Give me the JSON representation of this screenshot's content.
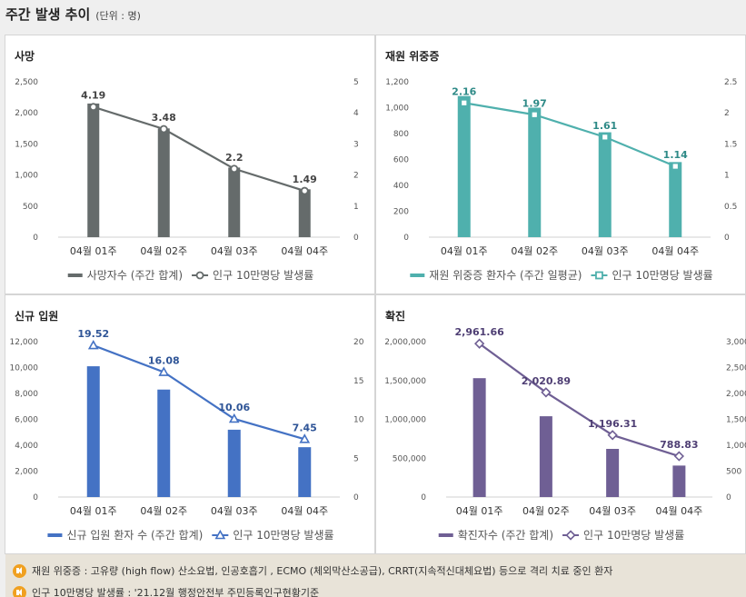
{
  "header": {
    "title": "주간 발생 추이",
    "unit": "(단위 : 명)"
  },
  "chart_data": [
    {
      "id": "death",
      "type": "bar+line",
      "title": "사망",
      "categories": [
        "04월 01주",
        "04월 02주",
        "04월 03주",
        "04월 04주"
      ],
      "bar": {
        "name": "사망자수 (주간 합계)",
        "values": [
          2150,
          1750,
          1120,
          770
        ],
        "color": "#656b6b"
      },
      "line": {
        "name": "인구 10만명당 발생률",
        "values": [
          4.19,
          3.48,
          2.2,
          1.49
        ],
        "labels": [
          "4.19",
          "3.48",
          "2.2",
          "1.49"
        ],
        "color": "#656b6b",
        "marker": "circle"
      },
      "left_axis": {
        "range": [
          0,
          2500
        ],
        "ticks": [
          "0",
          "500",
          "1,000",
          "1,500",
          "2,000",
          "2,500"
        ]
      },
      "right_axis": {
        "range": [
          0,
          5
        ],
        "ticks": [
          "0",
          "1",
          "2",
          "3",
          "4",
          "5"
        ]
      },
      "label_color": "#444444"
    },
    {
      "id": "severe",
      "type": "bar+line",
      "title": "재원 위중증",
      "categories": [
        "04월 01주",
        "04월 02주",
        "04월 03주",
        "04월 04주"
      ],
      "bar": {
        "name": "재원 위중증 환자수 (주간 일평균)",
        "values": [
          1090,
          1000,
          810,
          580
        ],
        "color": "#4fb0ad"
      },
      "line": {
        "name": "인구 10만명당 발생률",
        "values": [
          2.16,
          1.97,
          1.61,
          1.14
        ],
        "labels": [
          "2.16",
          "1.97",
          "1.61",
          "1.14"
        ],
        "color": "#4fb0ad",
        "marker": "square"
      },
      "left_axis": {
        "range": [
          0,
          1200
        ],
        "ticks": [
          "0",
          "200",
          "400",
          "600",
          "800",
          "1,000",
          "1,200"
        ]
      },
      "right_axis": {
        "range": [
          0,
          2.5
        ],
        "ticks": [
          "0",
          "0.5",
          "1",
          "1.5",
          "2",
          "2.5"
        ]
      },
      "label_color": "#2e8a87"
    },
    {
      "id": "admit",
      "type": "bar+line",
      "title": "신규 입원",
      "categories": [
        "04월 01주",
        "04월 02주",
        "04월 03주",
        "04월 04주"
      ],
      "bar": {
        "name": "신규 입원 환자 수 (주간 합계)",
        "values": [
          10100,
          8300,
          5200,
          3850
        ],
        "color": "#4472c4"
      },
      "line": {
        "name": "인구 10만명당 발생률",
        "values": [
          19.52,
          16.08,
          10.06,
          7.45
        ],
        "labels": [
          "19.52",
          "16.08",
          "10.06",
          "7.45"
        ],
        "color": "#4472c4",
        "marker": "triangle"
      },
      "left_axis": {
        "range": [
          0,
          12000
        ],
        "ticks": [
          "0",
          "2,000",
          "4,000",
          "6,000",
          "8,000",
          "10,000",
          "12,000"
        ]
      },
      "right_axis": {
        "range": [
          0,
          20
        ],
        "ticks": [
          "0",
          "5",
          "10",
          "15",
          "20"
        ]
      },
      "label_color": "#2f5597"
    },
    {
      "id": "confirmed",
      "type": "bar+line",
      "title": "확진",
      "categories": [
        "04월 01주",
        "04월 02주",
        "04월 03주",
        "04월 04주"
      ],
      "bar": {
        "name": "확진자수 (주간 합계)",
        "values": [
          1530000,
          1040000,
          620000,
          405000
        ],
        "color": "#6f5f94"
      },
      "line": {
        "name": "인구 10만명당 발생률",
        "values": [
          2961.66,
          2020.89,
          1196.31,
          788.83
        ],
        "labels": [
          "2,961.66",
          "2,020.89",
          "1,196.31",
          "788.83"
        ],
        "color": "#6f5f94",
        "marker": "diamond"
      },
      "left_axis": {
        "range": [
          0,
          2000000
        ],
        "ticks": [
          "0",
          "500,000",
          "1,000,000",
          "1,500,000",
          "2,000,000"
        ]
      },
      "right_axis": {
        "range": [
          0,
          3000
        ],
        "ticks": [
          "0",
          "500",
          "1,000",
          "1,500",
          "2,000",
          "2,500",
          "3,000"
        ]
      },
      "label_color": "#4f3f74"
    }
  ],
  "notes": [
    "재원 위중증 : 고유량 (high flow) 산소요법, 인공호흡기 , ECMO (체외막산소공급), CRRT(지속적신대체요법) 등으로 격리 치료 중인 환자",
    "인구 10만명당 발생률 : '21.12월 행정안전부 주민등록인구현황기준"
  ]
}
